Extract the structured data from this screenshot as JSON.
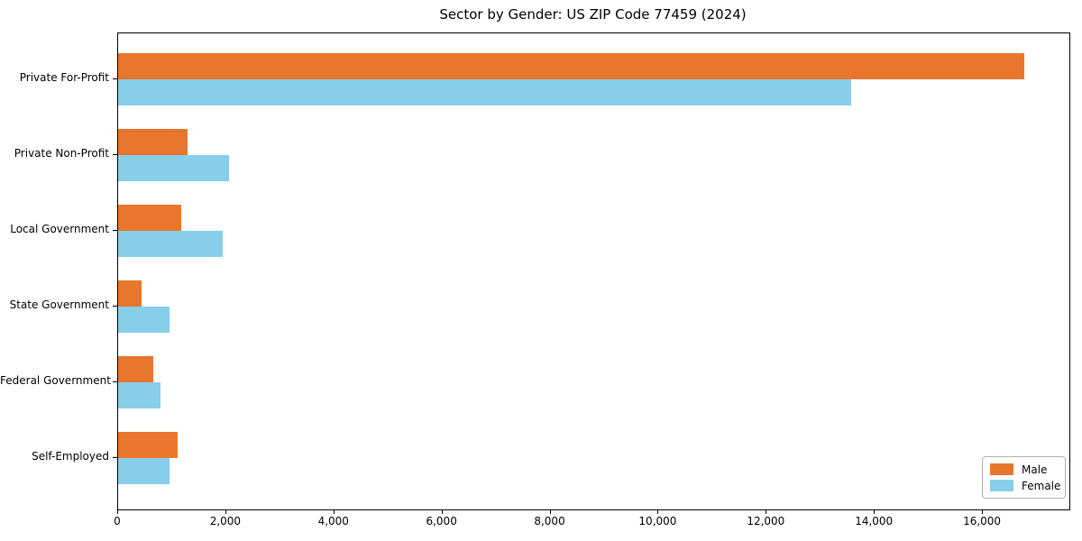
{
  "chart_data": {
    "type": "bar",
    "orientation": "horizontal",
    "title": "Sector by Gender: US ZIP Code 77459 (2024)",
    "categories": [
      "Private For-Profit",
      "Private Non-Profit",
      "Local Government",
      "State Government",
      "Federal Government",
      "Self-Employed"
    ],
    "series": [
      {
        "name": "Male",
        "color": "#e8762d",
        "values": [
          16760,
          1280,
          1170,
          430,
          650,
          1100
        ]
      },
      {
        "name": "Female",
        "color": "#87ceeb",
        "values": [
          13570,
          2050,
          1940,
          950,
          780,
          950
        ]
      }
    ],
    "xlim": [
      0,
      17600
    ],
    "xticks": [
      0,
      2000,
      4000,
      6000,
      8000,
      10000,
      12000,
      14000,
      16000
    ],
    "xtick_labels": [
      "0",
      "2,000",
      "4,000",
      "6,000",
      "8,000",
      "10,000",
      "12,000",
      "14,000",
      "16,000"
    ],
    "legend_position": "lower right",
    "grid": false,
    "axis_color": "#000000",
    "background_color": "#ffffff"
  }
}
